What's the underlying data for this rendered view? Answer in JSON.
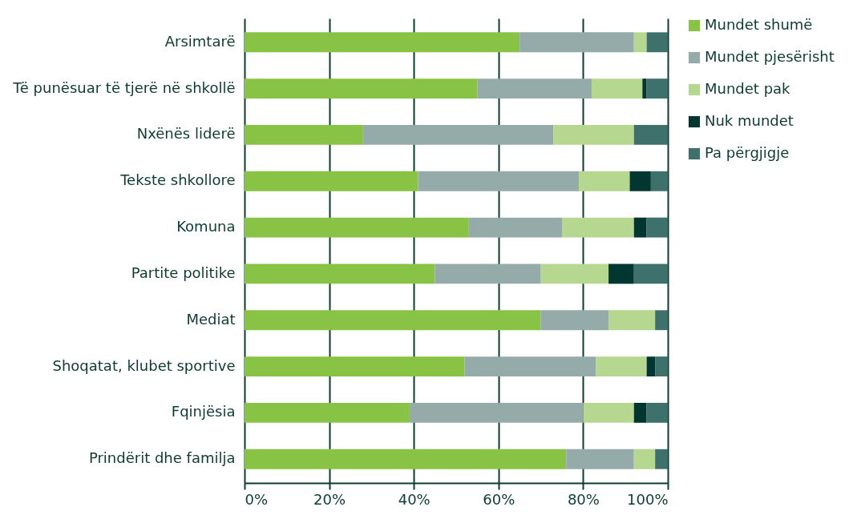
{
  "chart_data": {
    "type": "bar",
    "orientation": "horizontal",
    "stacked": true,
    "categories": [
      "Arsimtarë",
      "Të punësuar të tjerë në shkollë",
      "Nxënës liderë",
      "Tekste shkollore",
      "Komuna",
      "Partite politike",
      "Mediat",
      "Shoqatat, klubet sportive",
      "Fqinjësia",
      "Prindërit dhe familja"
    ],
    "series": [
      {
        "name": "Mundet shumë",
        "color": "#88c346",
        "values": [
          65,
          55,
          28,
          41,
          53,
          45,
          70,
          52,
          39,
          76
        ]
      },
      {
        "name": "Mundet pjesërisht",
        "color": "#94abaa",
        "values": [
          27,
          27,
          45,
          38,
          22,
          25,
          16,
          31,
          41,
          16
        ]
      },
      {
        "name": "Mundet pak",
        "color": "#b5d78f",
        "values": [
          3,
          12,
          19,
          12,
          17,
          16,
          11,
          12,
          12,
          5
        ]
      },
      {
        "name": "Nuk mundet",
        "color": "#023631",
        "values": [
          0,
          1,
          0,
          5,
          3,
          6,
          0,
          2,
          3,
          0
        ]
      },
      {
        "name": "Pa përgjigje",
        "color": "#3f716c",
        "values": [
          5,
          5,
          8,
          4,
          5,
          8,
          3,
          3,
          5,
          3
        ]
      }
    ],
    "xlim": [
      0,
      100
    ],
    "xticks": [
      {
        "value": 0,
        "label": "0%"
      },
      {
        "value": 20,
        "label": "20%"
      },
      {
        "value": 40,
        "label": "40%"
      },
      {
        "value": 60,
        "label": "60%"
      },
      {
        "value": 80,
        "label": "80%"
      },
      {
        "value": 100,
        "label": "100%"
      }
    ],
    "grid": "x",
    "legend": "right"
  }
}
